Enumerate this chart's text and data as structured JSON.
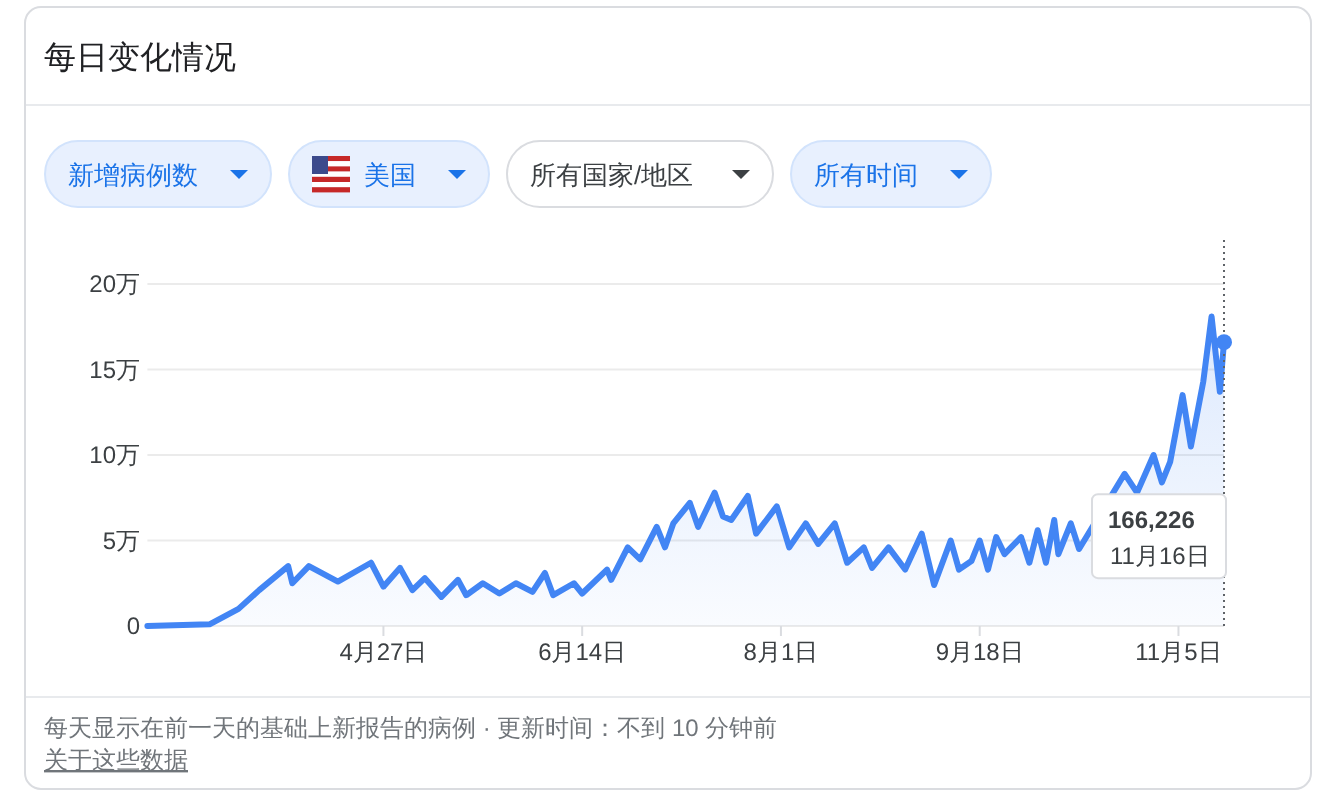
{
  "chart_data": {
    "type": "area",
    "title": "每日变化情况",
    "series": [
      {
        "color": "#4285f4",
        "x": [
          "--03-01",
          "--03-16",
          "--03-23",
          "--03-28",
          "--04-04",
          "--04-05",
          "--04-09",
          "--04-16",
          "--04-24",
          "--04-27",
          "--05-01",
          "--05-04",
          "--05-07",
          "--05-11",
          "--05-15",
          "--05-17",
          "--05-21",
          "--05-25",
          "--05-29",
          "--06-02",
          "--06-05",
          "--06-07",
          "--06-12",
          "--06-14",
          "--06-20",
          "--06-21",
          "--06-25",
          "--06-28",
          "--07-02",
          "--07-04",
          "--07-06",
          "--07-10",
          "--07-12",
          "--07-16",
          "--07-18",
          "--07-20",
          "--07-24",
          "--07-26",
          "--07-31",
          "--08-03",
          "--08-07",
          "--08-10",
          "--08-14",
          "--08-17",
          "--08-21",
          "--08-23",
          "--08-27",
          "--08-31",
          "--09-04",
          "--09-07",
          "--09-11",
          "--09-13",
          "--09-16",
          "--09-18",
          "--09-20",
          "--09-22",
          "--09-24",
          "--09-28",
          "--09-30",
          "--10-02",
          "--10-04",
          "--10-06",
          "--10-07",
          "--10-10",
          "--10-12",
          "--10-23",
          "--10-26",
          "--10-30",
          "--11-01",
          "--11-03",
          "--11-06",
          "--11-08",
          "--11-11",
          "--11-13",
          "--11-15",
          "--11-16"
        ],
        "values": [
          0,
          0.1,
          1,
          2.1,
          3.5,
          2.5,
          3.5,
          2.6,
          3.7,
          2.3,
          3.4,
          2.1,
          2.8,
          1.7,
          2.7,
          1.8,
          2.5,
          1.9,
          2.5,
          2,
          3.1,
          1.8,
          2.5,
          1.9,
          3.3,
          2.7,
          4.6,
          3.9,
          5.8,
          4.6,
          6,
          7.2,
          5.8,
          7.8,
          6.4,
          6.2,
          7.6,
          5.4,
          7,
          4.6,
          6,
          4.8,
          6,
          3.7,
          4.6,
          3.4,
          4.6,
          3.3,
          5.4,
          2.4,
          5,
          3.3,
          3.8,
          5,
          3.3,
          5.2,
          4.2,
          5.2,
          3.7,
          5.6,
          3.7,
          6.2,
          4.2,
          6,
          4.5,
          8.9,
          7.8,
          10,
          8.4,
          9.6,
          13.5,
          10.5,
          14.3,
          18.1,
          13.7,
          16.6
        ]
      }
    ],
    "xlim": [
      "--03-01",
      "--11-16"
    ],
    "xticks": [
      {
        "value": "--04-27",
        "label": "4月27日"
      },
      {
        "value": "--06-14",
        "label": "6月14日"
      },
      {
        "value": "--08-01",
        "label": "8月1日"
      },
      {
        "value": "--09-18",
        "label": "9月18日"
      },
      {
        "value": "--11-05",
        "label": "11月5日"
      }
    ],
    "ylim": [
      0,
      20
    ],
    "yticks": [
      0,
      {
        "value": 5,
        "label": "5万"
      },
      {
        "value": 10,
        "label": "10万"
      },
      {
        "value": 15,
        "label": "15万"
      },
      {
        "value": 20,
        "label": "20万"
      }
    ],
    "grid": "y",
    "ref_lines": [
      {
        "axis": "x",
        "value": "--11-16",
        "line_style": "dotted",
        "color": "#5f6368"
      }
    ],
    "annotations": [
      "新增病例数",
      "美国",
      "所有国家/地区",
      "所有时间",
      "每天显示在前一天的基础上新报告的病例 · 更新时间：不到 10 分钟前",
      "关于这些数据",
      "166,226",
      "11月16日"
    ]
  }
}
